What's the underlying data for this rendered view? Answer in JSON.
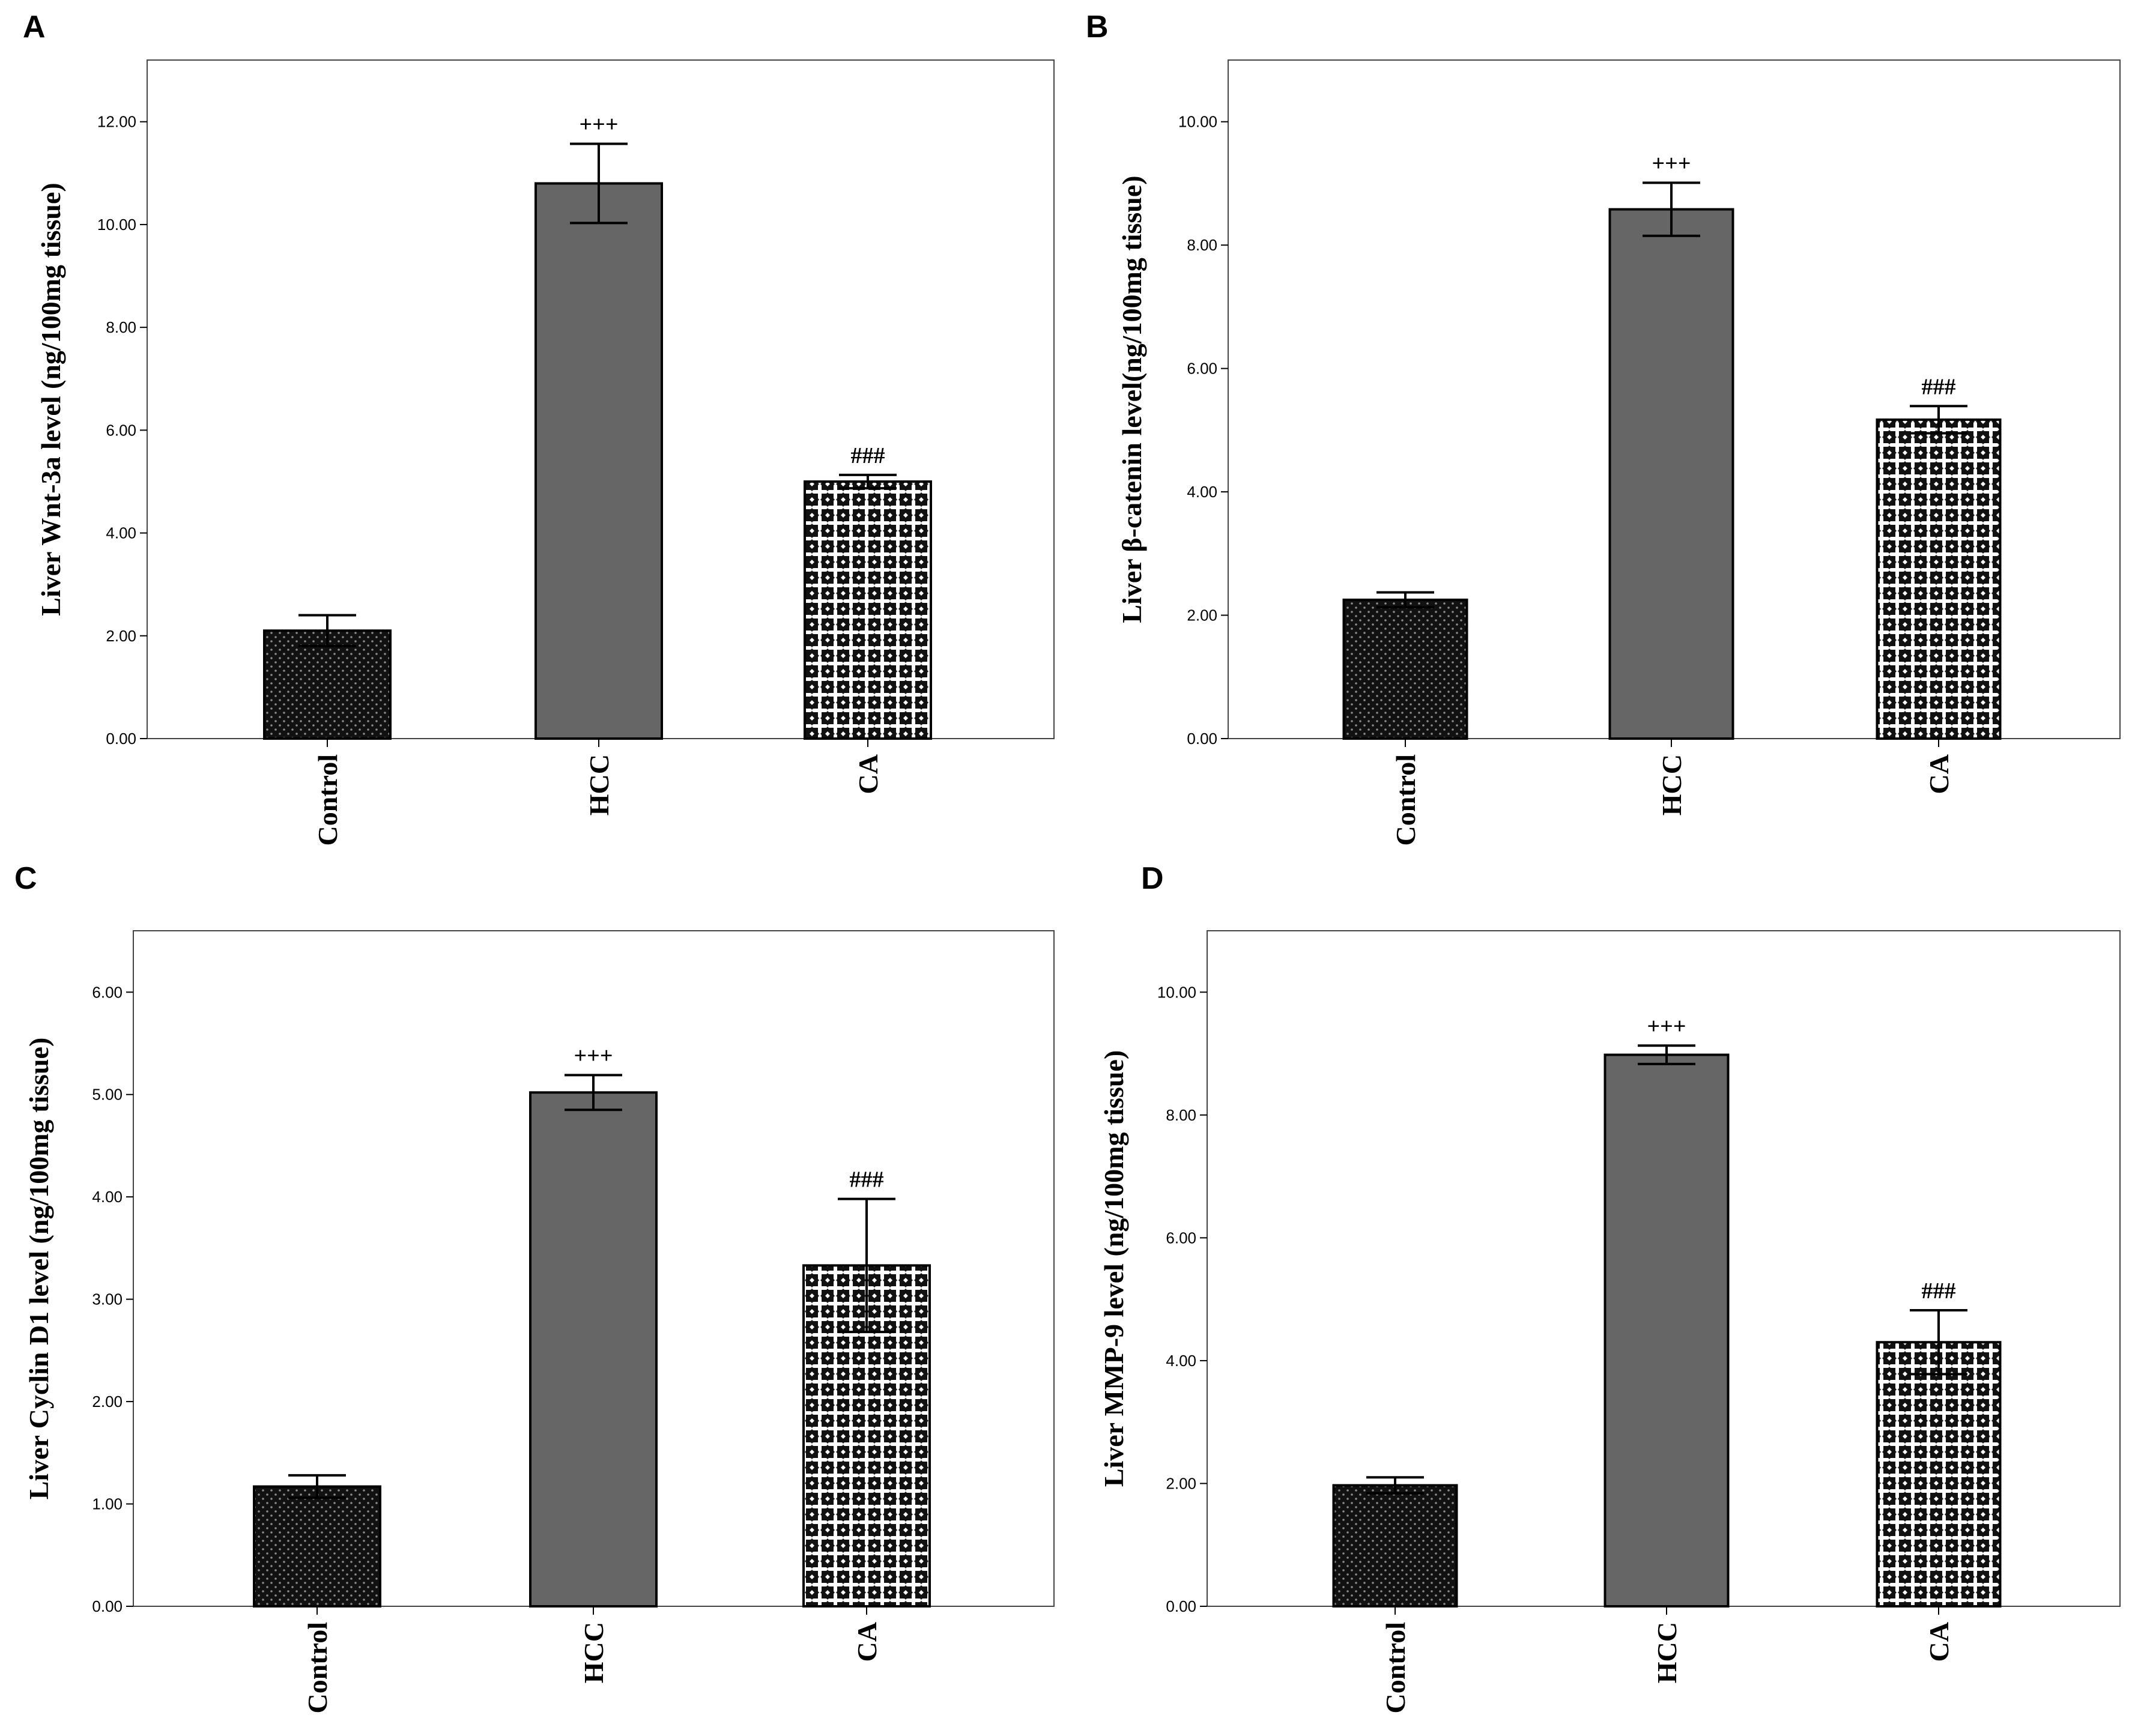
{
  "chart_data": [
    {
      "type": "bar",
      "panel": "A",
      "ylabel": "Liver Wnt-3a level (ng/100mg tissue)",
      "ylim": [
        0,
        13.2
      ],
      "yticks": [
        "0.00",
        "2.00",
        "4.00",
        "6.00",
        "8.00",
        "10.00",
        "12.00"
      ],
      "categories": [
        "Control",
        "HCC",
        "CA"
      ],
      "values": [
        2.1,
        10.8,
        5.0
      ],
      "errors": [
        0.3,
        0.77,
        0.13
      ],
      "annotations": [
        "",
        "+++",
        "###"
      ],
      "patterns": [
        "dots",
        "solid",
        "cross"
      ]
    },
    {
      "type": "bar",
      "panel": "B",
      "ylabel": "Liver β-catenin level(ng/100mg tissue)",
      "ylim": [
        0,
        11.0
      ],
      "yticks": [
        "0.00",
        "2.00",
        "4.00",
        "6.00",
        "8.00",
        "10.00"
      ],
      "categories": [
        "Control",
        "HCC",
        "CA"
      ],
      "values": [
        2.25,
        8.58,
        5.17
      ],
      "errors": [
        0.12,
        0.43,
        0.22
      ],
      "annotations": [
        "",
        "+++",
        "###"
      ],
      "patterns": [
        "dots",
        "solid",
        "cross"
      ]
    },
    {
      "type": "bar",
      "panel": "C",
      "ylabel": "Liver Cyclin D1 level (ng/100mg tissue)",
      "ylim": [
        0,
        6.6
      ],
      "yticks": [
        "0.00",
        "1.00",
        "2.00",
        "3.00",
        "4.00",
        "5.00",
        "6.00"
      ],
      "categories": [
        "Control",
        "HCC",
        "CA"
      ],
      "values": [
        1.17,
        5.02,
        3.33
      ],
      "errors": [
        0.11,
        0.17,
        0.65
      ],
      "annotations": [
        "",
        "+++",
        "###"
      ],
      "patterns": [
        "dots",
        "solid",
        "cross"
      ]
    },
    {
      "type": "bar",
      "panel": "D",
      "ylabel": "Liver MMP-9 level (ng/100mg tissue)",
      "ylim": [
        0,
        11.0
      ],
      "yticks": [
        "0.00",
        "2.00",
        "4.00",
        "6.00",
        "8.00",
        "10.00"
      ],
      "categories": [
        "Control",
        "HCC",
        "CA"
      ],
      "values": [
        1.97,
        8.98,
        4.3
      ],
      "errors": [
        0.13,
        0.15,
        0.52
      ],
      "annotations": [
        "",
        "+++",
        "###"
      ],
      "patterns": [
        "dots",
        "solid",
        "cross"
      ]
    }
  ],
  "colors": {
    "control_fill": "#111111",
    "hcc_fill": "#666666",
    "ca_fill": "#ffffff",
    "stroke": "#000000",
    "frame": "#444444"
  }
}
